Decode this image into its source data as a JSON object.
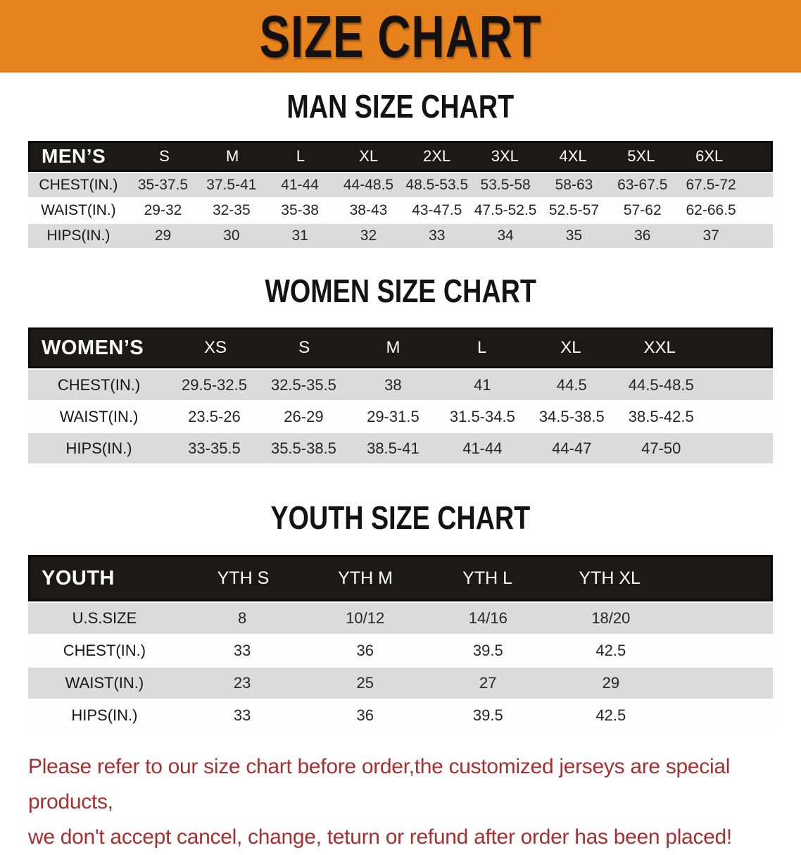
{
  "banner": {
    "title": "SIZE CHART",
    "bg_color": "#e8821c"
  },
  "colors": {
    "banner_orange": "#e8821c",
    "table_header_black": "#1d1919",
    "row_gray": "#dbdbdb",
    "footer_red": "#a53030"
  },
  "sections": [
    {
      "heading": "MAN SIZE CHART",
      "label": "MEN’S",
      "columns": [
        "S",
        "M",
        "L",
        "XL",
        "2XL",
        "3XL",
        "4XL",
        "5XL",
        "6XL"
      ],
      "rows": [
        {
          "label": "CHEST(IN.)",
          "values": [
            "35-37.5",
            "37.5-41",
            "41-44",
            "44-48.5",
            "48.5-53.5",
            "53.5-58",
            "58-63",
            "63-67.5",
            "67.5-72"
          ]
        },
        {
          "label": "WAIST(IN.)",
          "values": [
            "29-32",
            "32-35",
            "35-38",
            "38-43",
            "43-47.5",
            "47.5-52.5",
            "52.5-57",
            "57-62",
            "62-66.5"
          ]
        },
        {
          "label": "HIPS(IN.)",
          "values": [
            "29",
            "30",
            "31",
            "32",
            "33",
            "34",
            "35",
            "36",
            "37"
          ]
        }
      ]
    },
    {
      "heading": "WOMEN SIZE CHART",
      "label": "WOMEN’S",
      "columns": [
        "XS",
        "S",
        "M",
        "L",
        "XL",
        "XXL"
      ],
      "rows": [
        {
          "label": "CHEST(IN.)",
          "values": [
            "29.5-32.5",
            "32.5-35.5",
            "38",
            "41",
            "44.5",
            "44.5-48.5"
          ]
        },
        {
          "label": "WAIST(IN.)",
          "values": [
            "23.5-26",
            "26-29",
            "29-31.5",
            "31.5-34.5",
            "34.5-38.5",
            "38.5-42.5"
          ]
        },
        {
          "label": "HIPS(IN.)",
          "values": [
            "33-35.5",
            "35.5-38.5",
            "38.5-41",
            "41-44",
            "44-47",
            "47-50"
          ]
        }
      ]
    },
    {
      "heading": "YOUTH SIZE CHART",
      "label": "YOUTH",
      "columns": [
        "YTH S",
        "YTH M",
        "YTH L",
        "YTH XL"
      ],
      "rows": [
        {
          "label": "U.S.SIZE",
          "values": [
            "8",
            "10/12",
            "14/16",
            "18/20"
          ]
        },
        {
          "label": "CHEST(IN.)",
          "values": [
            "33",
            "36",
            "39.5",
            "42.5"
          ]
        },
        {
          "label": "WAIST(IN.)",
          "values": [
            "23",
            "25",
            "27",
            "29"
          ]
        },
        {
          "label": "HIPS(IN.)",
          "values": [
            "33",
            "36",
            "39.5",
            "42.5"
          ]
        }
      ]
    }
  ],
  "footer": {
    "lines": [
      "Please refer to our size chart before order,the customized jerseys are special products,",
      "we don't accept cancel, change, teturn or refund after order has been placed!"
    ]
  }
}
